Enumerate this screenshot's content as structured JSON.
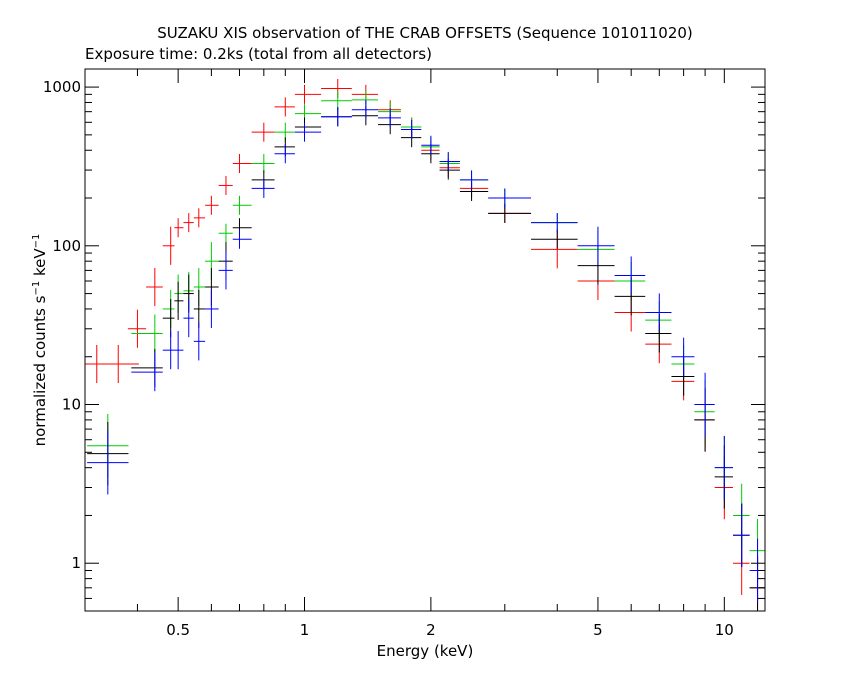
{
  "chart_data": {
    "type": "scatter",
    "title": "SUZAKU XIS observation of THE CRAB OFFSETS (Sequence 101011020)",
    "subtitle": "Exposure time: 0.2ks (total from all detectors)",
    "xlabel": "Energy (keV)",
    "ylabel_main": "normalized counts s",
    "ylabel_exp1": "−1",
    "ylabel_mid": " keV",
    "ylabel_exp2": "−1",
    "x_scale": "log",
    "y_scale": "log",
    "xlim": [
      0.3,
      12.5
    ],
    "ylim": [
      0.5,
      1300
    ],
    "x_ticks": [
      {
        "value": 0.5,
        "label": "0.5"
      },
      {
        "value": 1,
        "label": "1"
      },
      {
        "value": 2,
        "label": "2"
      },
      {
        "value": 5,
        "label": "5"
      },
      {
        "value": 10,
        "label": "10"
      }
    ],
    "y_ticks": [
      {
        "value": 1,
        "label": "1"
      },
      {
        "value": 10,
        "label": "10"
      },
      {
        "value": 100,
        "label": "100"
      },
      {
        "value": 1000,
        "label": "1000"
      }
    ],
    "grid": false,
    "series": [
      {
        "color": "#ff0000",
        "x": [
          0.32,
          0.36,
          0.4,
          0.44,
          0.48,
          0.5,
          0.53,
          0.56,
          0.6,
          0.65,
          0.7,
          0.8,
          0.9,
          1.0,
          1.2,
          1.4,
          1.6,
          1.8,
          2.0,
          2.2,
          2.5,
          3.0,
          4.0,
          5.0,
          6.0,
          7.0,
          8.0,
          9.0,
          10.0,
          11.0,
          12.0
        ],
        "y": [
          18,
          18,
          30,
          55,
          100,
          130,
          140,
          150,
          180,
          240,
          330,
          520,
          750,
          900,
          980,
          900,
          720,
          560,
          400,
          310,
          230,
          160,
          95,
          60,
          38,
          24,
          14,
          8,
          3,
          1.0,
          0.7
        ]
      },
      {
        "color": "#00cc00",
        "x": [
          0.34,
          0.44,
          0.48,
          0.5,
          0.53,
          0.56,
          0.6,
          0.65,
          0.7,
          0.8,
          0.9,
          1.0,
          1.2,
          1.4,
          1.6,
          1.8,
          2.0,
          2.2,
          2.5,
          3.0,
          4.0,
          5.0,
          6.0,
          7.0,
          8.0,
          9.0,
          10.0,
          11.0,
          12.0
        ],
        "y": [
          5.5,
          28,
          40,
          50,
          52,
          55,
          80,
          120,
          180,
          330,
          520,
          680,
          820,
          830,
          700,
          560,
          420,
          330,
          260,
          200,
          140,
          95,
          60,
          34,
          18,
          9,
          4,
          2,
          1.2
        ]
      },
      {
        "color": "#000000",
        "x": [
          0.34,
          0.44,
          0.48,
          0.5,
          0.53,
          0.56,
          0.6,
          0.65,
          0.7,
          0.8,
          0.9,
          1.0,
          1.2,
          1.4,
          1.6,
          1.8,
          2.0,
          2.2,
          2.5,
          3.0,
          4.0,
          5.0,
          6.0,
          7.0,
          8.0,
          9.0,
          10.0,
          11.0,
          12.0
        ],
        "y": [
          4.9,
          17,
          35,
          45,
          50,
          40,
          55,
          80,
          130,
          260,
          420,
          560,
          650,
          660,
          580,
          480,
          380,
          300,
          220,
          160,
          110,
          75,
          48,
          28,
          15,
          8,
          3.5,
          1.5,
          0.7
        ]
      },
      {
        "color": "#0000ff",
        "x": [
          0.34,
          0.44,
          0.48,
          0.5,
          0.53,
          0.56,
          0.6,
          0.65,
          0.7,
          0.8,
          0.9,
          1.0,
          1.2,
          1.4,
          1.6,
          1.8,
          2.0,
          2.2,
          2.5,
          3.0,
          4.0,
          5.0,
          6.0,
          7.0,
          8.0,
          9.0,
          10.0,
          11.0,
          12.0
        ],
        "y": [
          4.3,
          16,
          22,
          22,
          35,
          25,
          40,
          70,
          110,
          230,
          380,
          520,
          650,
          720,
          640,
          540,
          430,
          340,
          260,
          200,
          140,
          100,
          65,
          38,
          20,
          10,
          4,
          1.5,
          0.9
        ]
      }
    ]
  }
}
